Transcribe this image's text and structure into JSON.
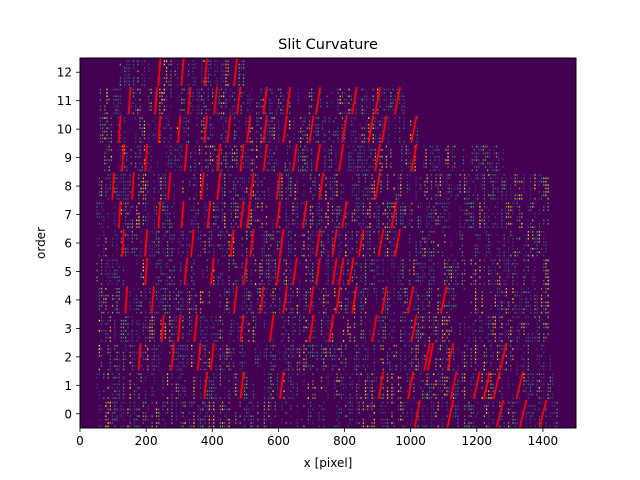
{
  "chart_data": {
    "type": "heatmap",
    "title": "Slit Curvature",
    "xlabel": "x [pixel]",
    "ylabel": "order",
    "xlim": [
      0,
      1500
    ],
    "ylim": [
      -0.5,
      12.5
    ],
    "xticks": [
      0,
      200,
      400,
      600,
      800,
      1000,
      1200,
      1400
    ],
    "yticks": [
      0,
      1,
      2,
      3,
      4,
      5,
      6,
      7,
      8,
      9,
      10,
      11,
      12
    ],
    "grid": false,
    "background_color": "#440154",
    "line_color": "#ff0000",
    "colormap": "viridis",
    "orders": [
      {
        "order": 0,
        "x_start": 50,
        "x_end": 1450
      },
      {
        "order": 1,
        "x_start": 50,
        "x_end": 1450
      },
      {
        "order": 2,
        "x_start": 50,
        "x_end": 1430
      },
      {
        "order": 3,
        "x_start": 50,
        "x_end": 1420
      },
      {
        "order": 4,
        "x_start": 50,
        "x_end": 1420
      },
      {
        "order": 5,
        "x_start": 50,
        "x_end": 1420
      },
      {
        "order": 6,
        "x_start": 50,
        "x_end": 1420
      },
      {
        "order": 7,
        "x_start": 50,
        "x_end": 1420
      },
      {
        "order": 8,
        "x_start": 50,
        "x_end": 1420
      },
      {
        "order": 9,
        "x_start": 60,
        "x_end": 1280
      },
      {
        "order": 10,
        "x_start": 60,
        "x_end": 1020
      },
      {
        "order": 11,
        "x_start": 60,
        "x_end": 980
      },
      {
        "order": 12,
        "x_start": 120,
        "x_end": 500
      }
    ],
    "curvature_lines": [
      {
        "order": 0,
        "x": [
          1020,
          1120,
          1270,
          1340,
          1400
        ]
      },
      {
        "order": 1,
        "x": [
          380,
          490,
          610,
          910,
          1000,
          1130,
          1200,
          1230,
          1260,
          1330
        ]
      },
      {
        "order": 2,
        "x": [
          180,
          280,
          360,
          400,
          1050,
          1060,
          1120,
          1280
        ]
      },
      {
        "order": 3,
        "x": [
          250,
          300,
          350,
          490,
          580,
          700,
          760,
          890,
          1010
        ]
      },
      {
        "order": 4,
        "x": [
          140,
          220,
          470,
          550,
          620,
          700,
          780,
          830,
          920,
          1000,
          1100
        ]
      },
      {
        "order": 5,
        "x": [
          200,
          320,
          400,
          500,
          600,
          650,
          720,
          770,
          790,
          820
        ]
      },
      {
        "order": 6,
        "x": [
          130,
          200,
          340,
          460,
          520,
          610,
          720,
          770,
          850,
          910,
          960
        ]
      },
      {
        "order": 7,
        "x": [
          120,
          240,
          310,
          390,
          490,
          510,
          600,
          680,
          800,
          950
        ]
      },
      {
        "order": 8,
        "x": [
          100,
          160,
          270,
          370,
          420,
          520,
          600,
          730,
          900
        ]
      },
      {
        "order": 9,
        "x": [
          130,
          200,
          320,
          420,
          490,
          560,
          650,
          720,
          790,
          900,
          1010
        ]
      },
      {
        "order": 10,
        "x": [
          120,
          240,
          300,
          380,
          450,
          510,
          560,
          620,
          700,
          800,
          880,
          920,
          1010
        ]
      },
      {
        "order": 11,
        "x": [
          150,
          230,
          330,
          410,
          480,
          560,
          630,
          720,
          830,
          900,
          960
        ]
      },
      {
        "order": 12,
        "x": [
          240,
          310,
          380,
          470
        ]
      }
    ]
  }
}
